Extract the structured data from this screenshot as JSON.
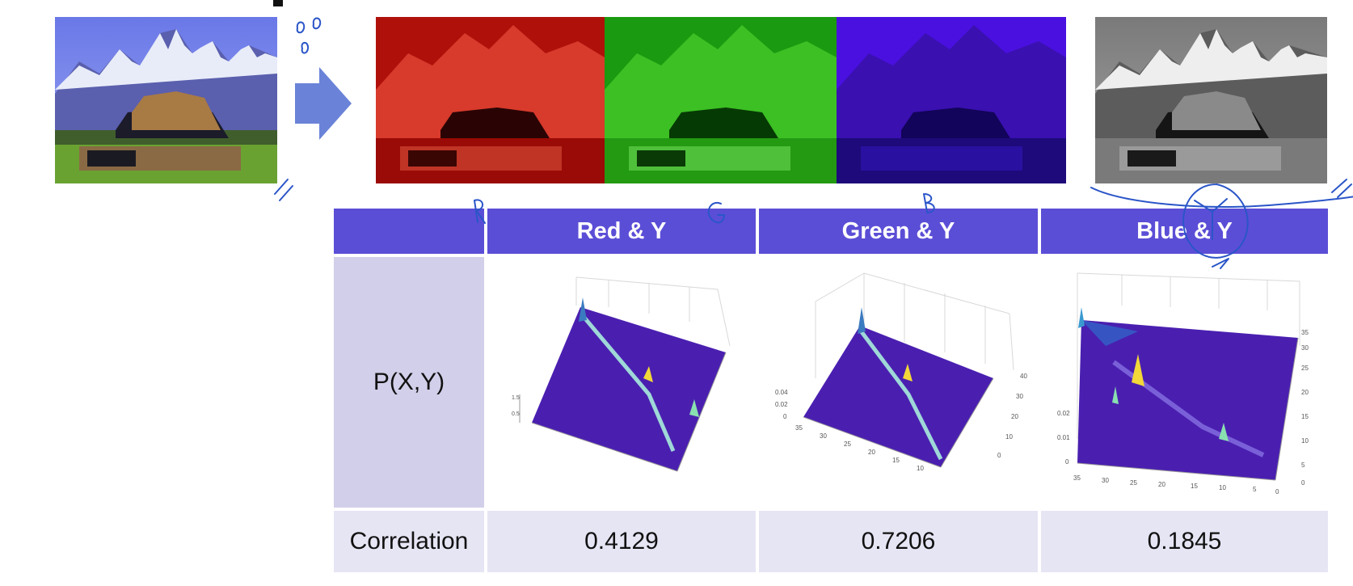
{
  "table": {
    "headers": [
      "",
      "Red & Y",
      "Green & Y",
      "Blue & Y"
    ],
    "row_labels": [
      "P(X,Y)",
      "Correlation"
    ],
    "correlation_values": [
      "0.4129",
      "0.7206",
      "0.1845"
    ]
  },
  "images": {
    "original": "color-barn-photo",
    "channels": [
      "red-channel",
      "green-channel",
      "blue-channel"
    ],
    "grayscale": "grayscale-y-channel"
  },
  "colors": {
    "header_bg": "#5b4ed6",
    "label_bg": "#d2cfea",
    "row_bg": "#e6e5f4",
    "ink": "#2a55c8",
    "surface": "#4a1fb0"
  }
}
